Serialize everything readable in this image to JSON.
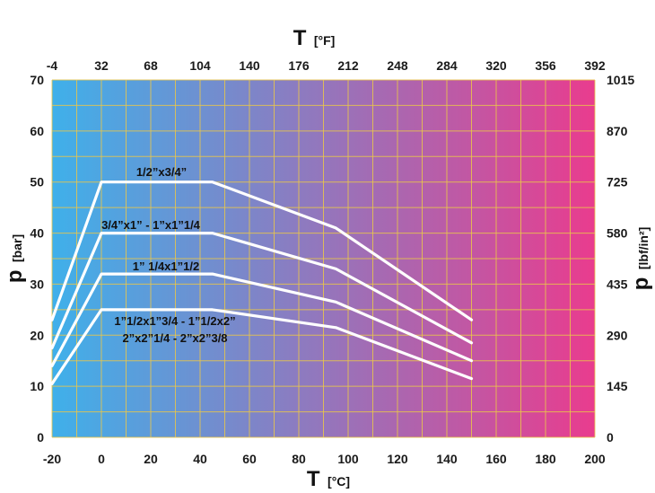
{
  "chart_data": {
    "type": "line",
    "x_bottom": {
      "symbol": "T",
      "unit": "[°C]",
      "range": [
        -20,
        200
      ],
      "ticks": [
        "-20",
        "0",
        "20",
        "40",
        "60",
        "80",
        "100",
        "120",
        "140",
        "160",
        "180",
        "200"
      ]
    },
    "x_top": {
      "symbol": "T",
      "unit": "[°F]",
      "ticks": [
        "-4",
        "32",
        "68",
        "104",
        "140",
        "176",
        "212",
        "248",
        "284",
        "320",
        "356",
        "392"
      ]
    },
    "y_left": {
      "symbol": "p",
      "unit": "[bar]",
      "range": [
        0,
        70
      ],
      "ticks": [
        "0",
        "10",
        "20",
        "30",
        "40",
        "50",
        "60",
        "70"
      ]
    },
    "y_right": {
      "symbol": "p",
      "unit": "[lbf/in²]",
      "ticks": [
        "0",
        "145",
        "290",
        "435",
        "580",
        "725",
        "870",
        "1015"
      ]
    },
    "grid": true,
    "background_gradient": [
      "#3fb0ea",
      "#e93c8e"
    ],
    "line_color": "#ffffff",
    "series": [
      {
        "name": "1/2”x3/4”",
        "x": [
          -20,
          0,
          45,
          95,
          150
        ],
        "y": [
          23,
          50,
          50,
          41,
          23
        ]
      },
      {
        "name": "3/4”x1” - 1”x1”1/4",
        "x": [
          -20,
          0,
          45,
          95,
          150
        ],
        "y": [
          17.5,
          40,
          40,
          33,
          18.5
        ]
      },
      {
        "name": "1” 1/4x1”1/2",
        "x": [
          -20,
          0,
          45,
          95,
          150
        ],
        "y": [
          14,
          32,
          32,
          26.5,
          15
        ]
      },
      {
        "name": "1”1/2x1”3/4 - 1”1/2x2”",
        "name_line2": "2”x2”1/4 - 2”x2”3/8",
        "x": [
          -20,
          0,
          45,
          95,
          150
        ],
        "y": [
          10.5,
          25,
          25,
          21.5,
          11.5
        ]
      }
    ]
  }
}
